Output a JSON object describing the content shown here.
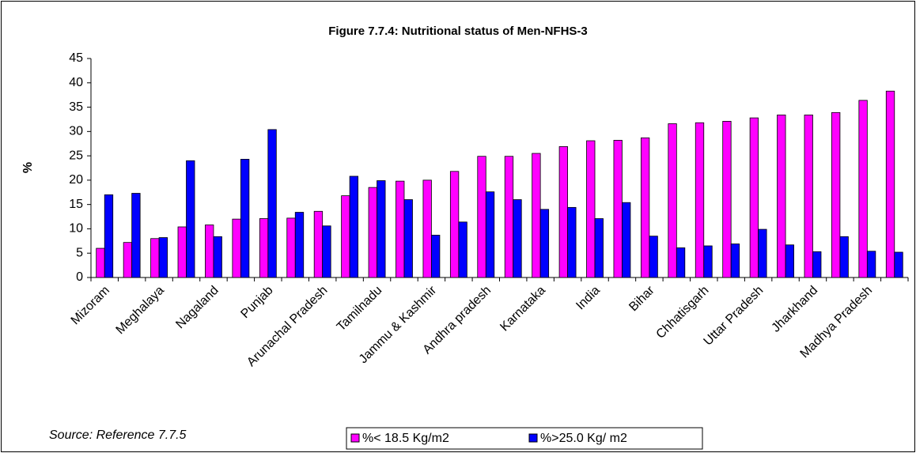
{
  "chart_data": {
    "type": "bar",
    "title": "Figure 7.7.4: Nutritional status of Men-NFHS-3",
    "y_label": "%",
    "source": "Source: Reference 7.7.5",
    "categories": [
      "Mizoram",
      null,
      "Meghalaya",
      null,
      "Nagaland",
      null,
      "Punjab",
      null,
      "Arunachal Pradesh",
      null,
      "Tamilnadu",
      null,
      "Jammu & Kashmir",
      null,
      "Andhra pradesh",
      null,
      "Karnataka",
      null,
      "India",
      null,
      "Bihar",
      null,
      "Chhatisgarh",
      null,
      "Uttar Pradesh",
      null,
      "Jharkhand",
      null,
      "Madhya Pradesh",
      null
    ],
    "series": [
      {
        "name": "%< 18.5 Kg/m2",
        "color": "#ff00ff",
        "values": [
          6,
          7.2,
          8,
          10.4,
          10.8,
          12,
          12.1,
          12.2,
          13.6,
          16.8,
          18.5,
          19.8,
          20,
          21.8,
          24.9,
          24.9,
          25.5,
          26.9,
          28.1,
          28.2,
          28.7,
          31.6,
          31.8,
          32.1,
          32.8,
          33.4,
          33.4,
          33.9,
          36.4,
          38.3
        ]
      },
      {
        "name": "%>25.0 Kg/ m2",
        "color": "#0000ff",
        "values": [
          17,
          17.3,
          8.2,
          24,
          8.4,
          24.3,
          30.4,
          13.4,
          10.6,
          20.8,
          19.9,
          16,
          8.7,
          11.4,
          17.6,
          16,
          14,
          14.4,
          12.1,
          15.4,
          8.5,
          6.1,
          6.5,
          6.9,
          9.9,
          6.7,
          5.3,
          8.4,
          5.4,
          5.2
        ]
      }
    ],
    "ylim": [
      0,
      45
    ],
    "yticks": [
      0,
      5,
      10,
      15,
      20,
      25,
      30,
      35,
      40,
      45
    ],
    "grid": false,
    "legend": "bottom"
  }
}
